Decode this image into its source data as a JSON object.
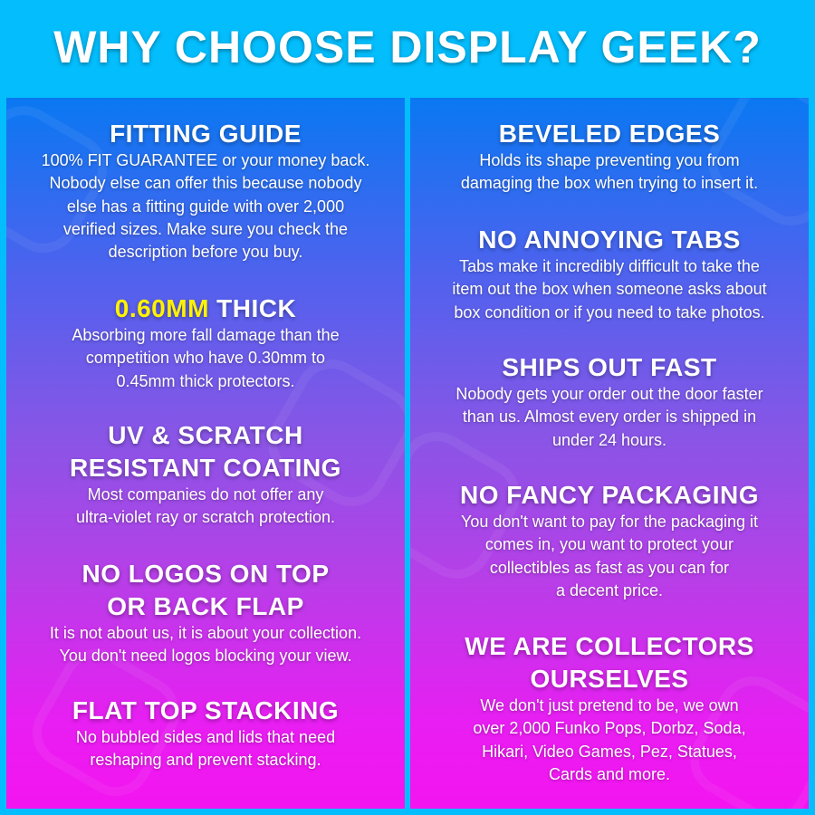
{
  "title": "WHY CHOOSE DISPLAY GEEK?",
  "colors": {
    "background": "#03bdfc",
    "gradient_top": "#0a78f2",
    "gradient_bottom": "#f414f0",
    "highlight": "#fff200"
  },
  "left": [
    {
      "heading": "FITTING GUIDE",
      "body": "100% FIT GUARANTEE or your money back.\nNobody else can offer this because nobody\nelse has a fitting guide with over 2,000\nverified sizes. Make sure you check the\ndescription before you buy."
    },
    {
      "heading_highlight": "0.60MM",
      "heading": " THICK",
      "body": "Absorbing more fall damage than the\ncompetition who have 0.30mm to\n0.45mm thick protectors."
    },
    {
      "heading": "UV & SCRATCH\nRESISTANT COATING",
      "body": "Most companies do not offer any\nultra-violet ray or scratch protection."
    },
    {
      "heading": "NO LOGOS ON TOP\nOR BACK FLAP",
      "body": "It is not about us, it is about your collection.\nYou don't need logos blocking your view."
    },
    {
      "heading": "FLAT TOP STACKING",
      "body": "No bubbled sides and lids that need\nreshaping and prevent stacking."
    }
  ],
  "right": [
    {
      "heading": "BEVELED EDGES",
      "body": "Holds its shape preventing you from\ndamaging the box when trying to insert it."
    },
    {
      "heading": "NO ANNOYING TABS",
      "body": "Tabs make it incredibly difficult to take the\nitem out the box when someone asks about\nbox condition or if you need to take photos."
    },
    {
      "heading": "SHIPS OUT FAST",
      "body": "Nobody gets your order out the door faster\nthan us. Almost every order is shipped in\nunder 24 hours."
    },
    {
      "heading": "NO FANCY PACKAGING",
      "body": "You don't want to pay for the packaging it\ncomes in, you want to protect your\ncollectibles as fast as you can for\na decent price."
    },
    {
      "heading": "WE ARE COLLECTORS\nOURSELVES",
      "body": "We don't just pretend to be, we own\nover 2,000 Funko Pops, Dorbz, Soda,\nHikari, Video Games, Pez, Statues,\nCards and more."
    }
  ]
}
